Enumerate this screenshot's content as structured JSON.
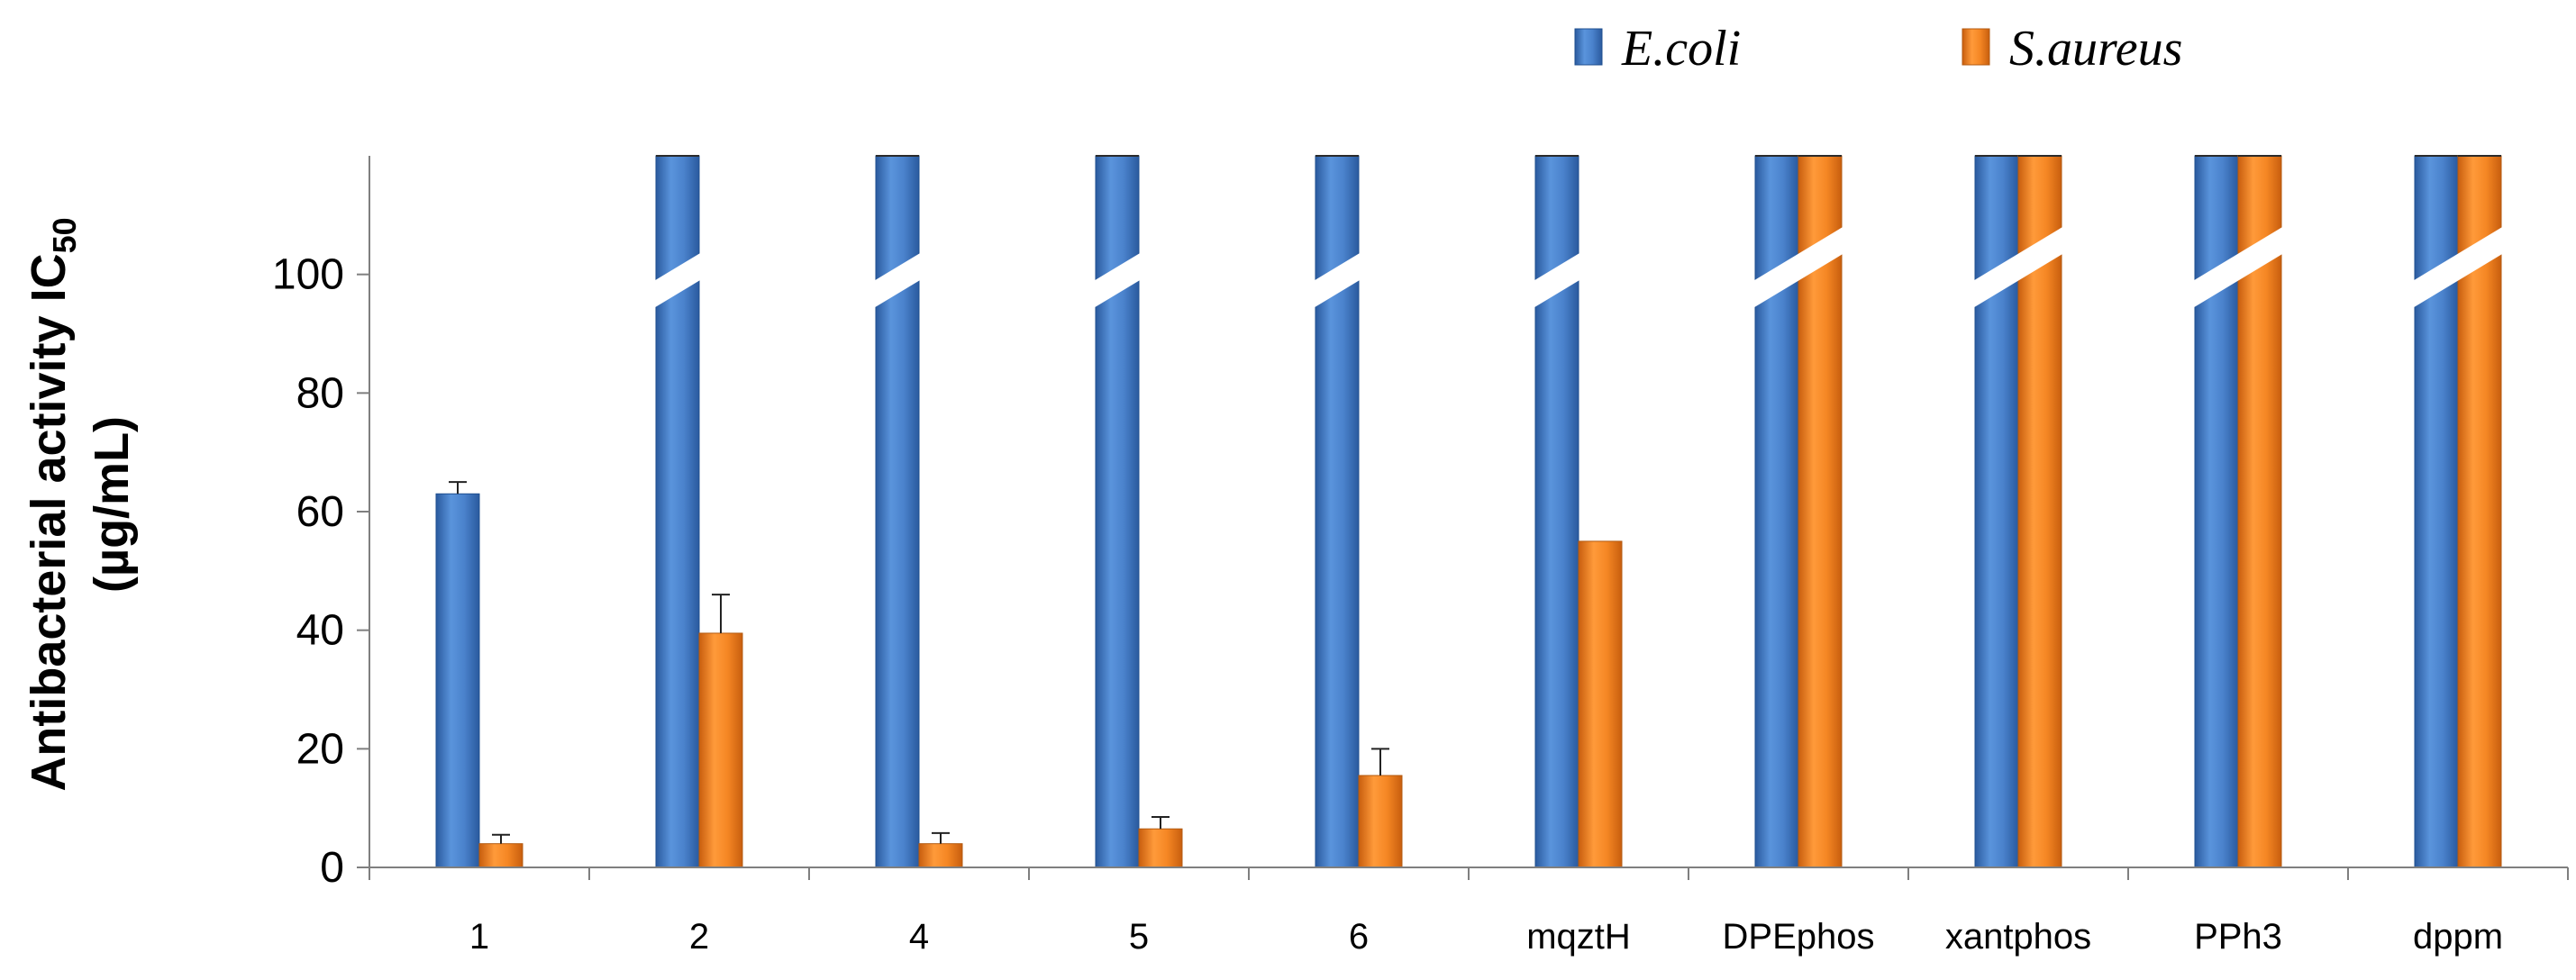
{
  "chart_data": {
    "type": "bar",
    "title": "",
    "xlabel": "",
    "ylabel": {
      "main": "Antibacterial activity IC",
      "subscript": "50",
      "units": "(µg/mL)"
    },
    "ylim": [
      0,
      120
    ],
    "yticks": [
      0,
      20,
      40,
      60,
      80,
      100
    ],
    "axis_break": "values above the axis top are drawn as truncated bars with a diagonal break",
    "categories": [
      "1",
      "2",
      "4",
      "5",
      "6",
      "mqztH",
      "DPEphos",
      "xantphos",
      "PPh3",
      "dppm"
    ],
    "series": [
      {
        "name": "E.coli",
        "color": "#3a75c4",
        "values": [
          63,
          null,
          null,
          null,
          null,
          null,
          null,
          null,
          null,
          null
        ],
        "truncated": [
          false,
          true,
          true,
          true,
          true,
          true,
          true,
          true,
          true,
          true
        ],
        "errors": [
          2,
          0,
          0,
          0,
          0,
          0,
          0,
          0,
          0,
          0
        ]
      },
      {
        "name": "S.aureus",
        "color": "#f07d1a",
        "values": [
          4,
          39.5,
          4,
          6.5,
          15.5,
          55,
          null,
          null,
          null,
          null
        ],
        "truncated": [
          false,
          false,
          false,
          false,
          false,
          false,
          true,
          true,
          true,
          true
        ],
        "errors": [
          1.5,
          6.5,
          1.8,
          2,
          4.5,
          0,
          0,
          0,
          0,
          0
        ]
      }
    ],
    "legend": {
      "position": "top-right"
    }
  }
}
